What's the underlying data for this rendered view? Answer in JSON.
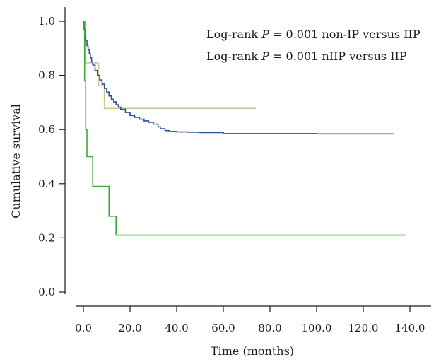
{
  "chart_data": {
    "type": "line",
    "xlabel": "Time (months)",
    "ylabel": "Cumulative survival",
    "xlim": [
      0,
      140
    ],
    "ylim": [
      0,
      1.0
    ],
    "x_ticks": [
      "0.0",
      "20.0",
      "40.0",
      "60.0",
      "80.0",
      "100.0",
      "120.0",
      "140.0"
    ],
    "y_ticks": [
      "0.0",
      "0.2",
      "0.4",
      "0.6",
      "0.8",
      "1.0"
    ],
    "grid": false,
    "annotations": [
      {
        "prefix": "Log-rank ",
        "italic": "P",
        "suffix": " = 0.001 non-IP versus IIP"
      },
      {
        "prefix": "Log-rank ",
        "italic": "P",
        "suffix": " = 0.001 nIIP versus IIP"
      }
    ],
    "series": [
      {
        "color": "#c8c890",
        "step": true,
        "points": [
          [
            0,
            1.0
          ],
          [
            1,
            1.0
          ],
          [
            1,
            0.846
          ],
          [
            6.5,
            0.846
          ],
          [
            6.5,
            0.762
          ],
          [
            9,
            0.762
          ],
          [
            9,
            0.678
          ],
          [
            74,
            0.678
          ]
        ]
      },
      {
        "color": "#2f4f9a",
        "step": true,
        "points": [
          [
            0,
            1.0
          ],
          [
            0.3,
            0.97
          ],
          [
            0.6,
            0.95
          ],
          [
            1,
            0.93
          ],
          [
            1.5,
            0.91
          ],
          [
            2,
            0.895
          ],
          [
            2.5,
            0.88
          ],
          [
            3,
            0.865
          ],
          [
            3.5,
            0.85
          ],
          [
            4,
            0.838
          ],
          [
            5,
            0.818
          ],
          [
            6,
            0.8
          ],
          [
            7,
            0.783
          ],
          [
            8,
            0.768
          ],
          [
            9,
            0.752
          ],
          [
            10,
            0.738
          ],
          [
            11,
            0.724
          ],
          [
            12,
            0.712
          ],
          [
            13,
            0.702
          ],
          [
            14,
            0.692
          ],
          [
            15,
            0.683
          ],
          [
            16,
            0.675
          ],
          [
            18,
            0.663
          ],
          [
            20,
            0.652
          ],
          [
            22,
            0.645
          ],
          [
            24,
            0.638
          ],
          [
            26,
            0.632
          ],
          [
            28,
            0.627
          ],
          [
            30,
            0.62
          ],
          [
            32,
            0.61
          ],
          [
            33,
            0.603
          ],
          [
            35,
            0.596
          ],
          [
            37,
            0.593
          ],
          [
            40,
            0.591
          ],
          [
            45,
            0.59
          ],
          [
            50,
            0.589
          ],
          [
            55,
            0.589
          ],
          [
            60,
            0.585
          ],
          [
            80,
            0.585
          ],
          [
            100,
            0.584
          ],
          [
            120,
            0.584
          ],
          [
            133,
            0.584
          ]
        ]
      },
      {
        "color": "#3aa83a",
        "step": true,
        "points": [
          [
            0,
            1.0
          ],
          [
            0.5,
            0.78
          ],
          [
            1,
            0.6
          ],
          [
            1.5,
            0.5
          ],
          [
            4,
            0.5
          ],
          [
            4,
            0.39
          ],
          [
            11,
            0.39
          ],
          [
            11,
            0.28
          ],
          [
            14,
            0.28
          ],
          [
            14,
            0.21
          ],
          [
            138,
            0.21
          ]
        ]
      }
    ]
  }
}
